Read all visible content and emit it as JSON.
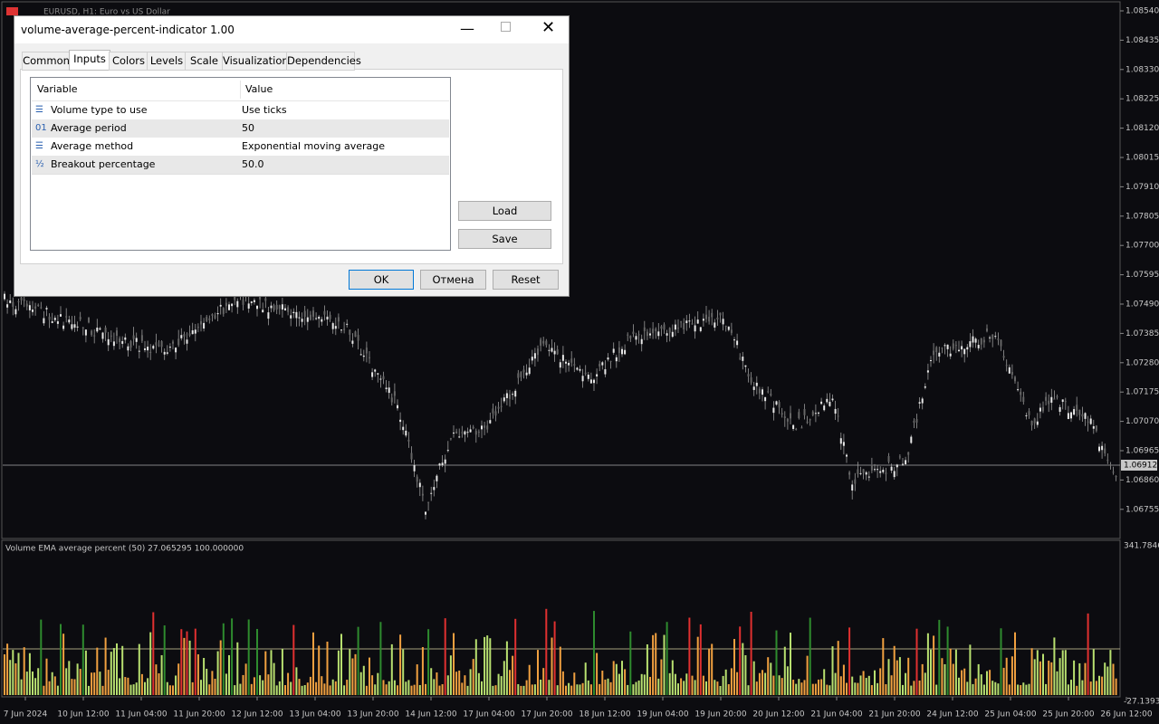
{
  "chart_window": {
    "title": "EURUSD, H1:  Euro vs US Dollar",
    "price_axis": [
      "1.08540",
      "1.08435",
      "1.08330",
      "1.08225",
      "1.08120",
      "1.08015",
      "1.07910",
      "1.07805",
      "1.07700",
      "1.07595",
      "1.07490",
      "1.07385",
      "1.07280",
      "1.07175",
      "1.07070",
      "1.06965",
      "1.06860",
      "1.06755"
    ],
    "current_price": "1.06912",
    "indicator": {
      "label": "Volume EMA average percent (50) 27.065295 100.000000",
      "axis_top": "341.7846",
      "axis_bottom": "-27.1393"
    },
    "time_axis": [
      "7 Jun 2024",
      "10 Jun 12:00",
      "11 Jun 04:00",
      "11 Jun 20:00",
      "12 Jun 12:00",
      "13 Jun 04:00",
      "13 Jun 20:00",
      "14 Jun 12:00",
      "17 Jun 04:00",
      "17 Jun 20:00",
      "18 Jun 12:00",
      "19 Jun 04:00",
      "19 Jun 20:00",
      "20 Jun 12:00",
      "21 Jun 04:00",
      "21 Jun 20:00",
      "24 Jun 12:00",
      "25 Jun 04:00",
      "25 Jun 20:00",
      "26 Jun 12:00"
    ]
  },
  "dialog": {
    "title": "volume-average-percent-indicator 1.00",
    "tabs": [
      "Common",
      "Inputs",
      "Colors",
      "Levels",
      "Scale",
      "Visualization",
      "Dependencies"
    ],
    "table": {
      "header": [
        "Variable",
        "Value"
      ],
      "rows": [
        [
          "Volume type to use",
          "Use ticks"
        ],
        [
          "Average period",
          "50"
        ],
        [
          "Average method",
          "Exponential moving average"
        ],
        [
          "Breakout percentage",
          "50.0"
        ]
      ]
    },
    "side_buttons": [
      "Load",
      "Save"
    ],
    "buttons": [
      "OK",
      "Отмена",
      "Reset"
    ]
  }
}
